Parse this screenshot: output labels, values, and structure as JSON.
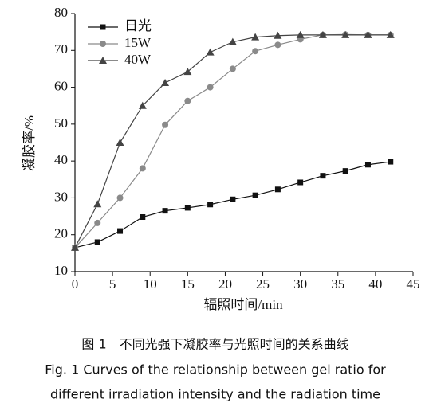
{
  "chart_data": {
    "type": "line",
    "x_label": "辐照时间/min",
    "y_label": "凝胶率/%",
    "xlim": [
      0,
      45
    ],
    "xticks": [
      0,
      5,
      10,
      15,
      20,
      25,
      30,
      35,
      40,
      45
    ],
    "ylim": [
      10,
      80
    ],
    "yticks": [
      10,
      20,
      30,
      40,
      50,
      60,
      70,
      80
    ],
    "legend": "upper left",
    "series": [
      {
        "name": "日光",
        "color": "#111111",
        "marker": "square",
        "x": [
          0,
          3,
          6,
          9,
          12,
          15,
          18,
          21,
          24,
          27,
          30,
          33,
          36,
          39,
          42
        ],
        "values": [
          16.5,
          18,
          21,
          24.8,
          26.5,
          27.3,
          28.2,
          29.6,
          30.7,
          32.3,
          34.2,
          36,
          37.3,
          39,
          39.8
        ]
      },
      {
        "name": "15W",
        "color": "#8a8a8a",
        "marker": "circle",
        "x": [
          0,
          3,
          6,
          9,
          12,
          15,
          18,
          21,
          24,
          27,
          30,
          33,
          36,
          39,
          42
        ],
        "values": [
          16.5,
          23.2,
          30,
          38,
          49.8,
          56.3,
          60,
          65,
          69.8,
          71.5,
          73,
          74.2,
          74.3,
          74.2,
          74.2
        ]
      },
      {
        "name": "40W",
        "color": "#444444",
        "marker": "triangle",
        "x": [
          0,
          3,
          6,
          9,
          12,
          15,
          18,
          21,
          24,
          27,
          30,
          33,
          36,
          39,
          42
        ],
        "values": [
          16.5,
          28.3,
          45,
          55,
          61.2,
          64.2,
          69.5,
          72.3,
          73.6,
          74,
          74.2,
          74.2,
          74.2,
          74.2,
          74.2
        ]
      }
    ],
    "caption": [
      "图 1　不同光强下凝胶率与光照时间的关系曲线",
      "Fig. 1 Curves of the relationship between gel ratio for",
      "different irradiation intensity and the radiation time"
    ]
  }
}
